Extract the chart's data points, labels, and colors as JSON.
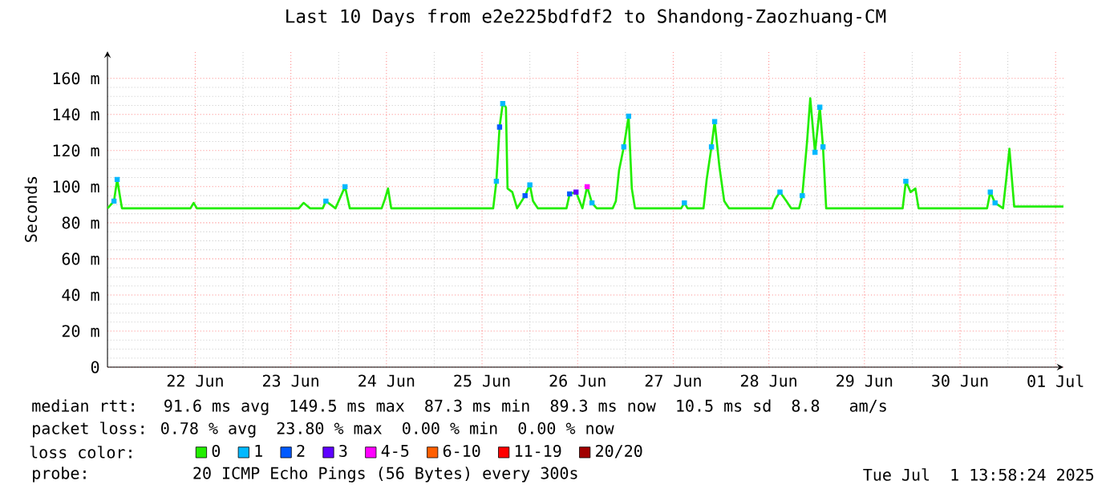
{
  "chart_data": {
    "type": "line",
    "title": "Last 10 Days from e2e225bdfdf2 to Shandong-Zaozhuang-CM",
    "ylabel": "Seconds",
    "legend_title": "loss color:",
    "legend": "bottom",
    "grid": true,
    "xlim": [
      "2025-06-21T13:58",
      "2025-07-01T13:58"
    ],
    "xticks": [
      {
        "value": "2025-06-22T12:00",
        "label": "22 Jun"
      },
      {
        "value": "2025-06-23T12:00",
        "label": "23 Jun"
      },
      {
        "value": "2025-06-24T12:00",
        "label": "24 Jun"
      },
      {
        "value": "2025-06-25T12:00",
        "label": "25 Jun"
      },
      {
        "value": "2025-06-26T12:00",
        "label": "26 Jun"
      },
      {
        "value": "2025-06-27T12:00",
        "label": "27 Jun"
      },
      {
        "value": "2025-06-28T12:00",
        "label": "28 Jun"
      },
      {
        "value": "2025-06-29T12:00",
        "label": "29 Jun"
      },
      {
        "value": "2025-06-30T12:00",
        "label": "30 Jun"
      },
      {
        "value": "2025-07-01T12:00",
        "label": "01 Jul"
      }
    ],
    "ylim": [
      0,
      175
    ],
    "yticks": [
      0,
      {
        "value": 20,
        "label": "20 m"
      },
      {
        "value": 40,
        "label": "40 m"
      },
      {
        "value": 60,
        "label": "60 m"
      },
      {
        "value": 80,
        "label": "80 m"
      },
      {
        "value": 100,
        "label": "100 m"
      },
      {
        "value": 120,
        "label": "120 m"
      },
      {
        "value": 140,
        "label": "140 m"
      },
      {
        "value": 160,
        "label": "160 m"
      }
    ],
    "annotations": [
      "median rtt:  91.6 ms avg  149.5 ms max  87.3 ms min  89.3 ms now  10.5 ms sd  8.8   am/s",
      "packet loss: 0.78 % avg  23.80 % max  0.00 % min  0.00 % now",
      "probe:        20 ICMP Echo Pings (56 Bytes) every 300s",
      "Tue Jul  1 13:58:24 2025"
    ],
    "series": [
      {
        "name": "0",
        "color": "#22ee00",
        "line_style": "solid",
        "x": [
          "2025-06-21T14:00",
          "2025-06-21T15:36",
          "2025-06-21T16:24",
          "2025-06-21T17:36",
          "2025-06-22T10:48",
          "2025-06-22T11:36",
          "2025-06-22T12:24",
          "2025-06-23T14:00",
          "2025-06-23T15:12",
          "2025-06-23T16:48",
          "2025-06-23T20:00",
          "2025-06-23T20:48",
          "2025-06-23T23:12",
          "2025-06-24T01:36",
          "2025-06-24T02:48",
          "2025-06-24T10:48",
          "2025-06-24T11:36",
          "2025-06-24T12:24",
          "2025-06-24T13:12",
          "2025-06-25T14:48",
          "2025-06-25T15:36",
          "2025-06-25T16:24",
          "2025-06-25T17:12",
          "2025-06-25T18:00",
          "2025-06-25T18:24",
          "2025-06-25T19:36",
          "2025-06-25T20:48",
          "2025-06-25T22:48",
          "2025-06-26T00:00",
          "2025-06-26T00:48",
          "2025-06-26T02:00",
          "2025-06-26T09:12",
          "2025-06-26T10:00",
          "2025-06-26T11:36",
          "2025-06-26T13:12",
          "2025-06-26T14:24",
          "2025-06-26T15:36",
          "2025-06-26T16:48",
          "2025-06-26T20:48",
          "2025-06-26T21:36",
          "2025-06-26T22:24",
          "2025-06-26T23:36",
          "2025-06-27T00:48",
          "2025-06-27T01:36",
          "2025-06-27T02:24",
          "2025-06-27T14:00",
          "2025-06-27T14:48",
          "2025-06-27T15:36",
          "2025-06-27T19:36",
          "2025-06-27T20:24",
          "2025-06-27T21:36",
          "2025-06-27T22:24",
          "2025-06-27T23:36",
          "2025-06-28T00:48",
          "2025-06-28T02:00",
          "2025-06-28T12:48",
          "2025-06-28T13:36",
          "2025-06-28T14:48",
          "2025-06-28T16:24",
          "2025-06-28T17:36",
          "2025-06-28T19:36",
          "2025-06-28T20:24",
          "2025-06-28T21:36",
          "2025-06-28T22:24",
          "2025-06-28T23:36",
          "2025-06-29T00:48",
          "2025-06-29T01:36",
          "2025-06-29T02:24",
          "2025-06-29T21:36",
          "2025-06-29T22:24",
          "2025-06-29T23:36",
          "2025-06-30T00:48",
          "2025-06-30T01:36",
          "2025-06-30T18:48",
          "2025-06-30T19:36",
          "2025-06-30T20:48",
          "2025-06-30T22:48",
          "2025-06-30T23:36",
          "2025-07-01T00:24",
          "2025-07-01T01:36",
          "2025-07-01T13:58"
        ],
        "values": [
          88,
          92,
          104,
          88,
          88,
          91,
          88,
          88,
          91,
          88,
          88,
          92,
          88,
          100,
          88,
          88,
          93,
          99,
          88,
          88,
          103,
          133,
          146,
          144,
          99,
          97,
          88,
          95,
          101,
          92,
          88,
          88,
          96,
          97,
          88,
          100,
          91,
          88,
          88,
          92,
          109,
          122,
          139,
          99,
          88,
          88,
          91,
          88,
          88,
          104,
          122,
          136,
          111,
          92,
          88,
          88,
          93,
          97,
          92,
          88,
          88,
          95,
          125,
          149,
          119,
          144,
          122,
          88,
          88,
          103,
          97,
          99,
          88,
          88,
          97,
          91,
          88,
          104,
          121,
          89,
          89
        ]
      },
      {
        "name": "1",
        "type": "scatter",
        "marker": "square",
        "color": "#00b8ff",
        "x": [
          "2025-06-21T15:36",
          "2025-06-21T16:24",
          "2025-06-23T20:48",
          "2025-06-24T01:36",
          "2025-06-25T15:36",
          "2025-06-25T17:12",
          "2025-06-26T00:00",
          "2025-06-26T15:36",
          "2025-06-26T23:36",
          "2025-06-27T00:48",
          "2025-06-27T14:48",
          "2025-06-27T21:36",
          "2025-06-27T22:24",
          "2025-06-28T14:48",
          "2025-06-28T20:24",
          "2025-06-28T23:36",
          "2025-06-29T00:48",
          "2025-06-29T01:36",
          "2025-06-29T22:24",
          "2025-06-30T19:36",
          "2025-06-30T20:48"
        ],
        "values": [
          92,
          104,
          92,
          100,
          103,
          146,
          101,
          91,
          122,
          139,
          91,
          122,
          136,
          97,
          95,
          119,
          144,
          122,
          103,
          97,
          91
        ]
      },
      {
        "name": "2",
        "type": "scatter",
        "marker": "square",
        "color": "#0059ff",
        "x": [
          "2025-06-25T16:24",
          "2025-06-25T22:48",
          "2025-06-26T10:00"
        ],
        "values": [
          133,
          95,
          96
        ]
      },
      {
        "name": "3",
        "type": "scatter",
        "marker": "square",
        "color": "#5e00ff",
        "x": [
          "2025-06-26T11:36"
        ],
        "values": [
          97
        ]
      },
      {
        "name": "4-5",
        "type": "scatter",
        "marker": "square",
        "color": "#ff00ff",
        "x": [
          "2025-06-26T14:24"
        ],
        "values": [
          100
        ]
      },
      {
        "name": "6-10",
        "type": "scatter",
        "marker": "square",
        "color": "#ff5e00"
      },
      {
        "name": "11-19",
        "type": "scatter",
        "marker": "square",
        "color": "#ff0000"
      },
      {
        "name": "20/20",
        "type": "scatter",
        "marker": "square",
        "color": "#a10000"
      }
    ]
  }
}
